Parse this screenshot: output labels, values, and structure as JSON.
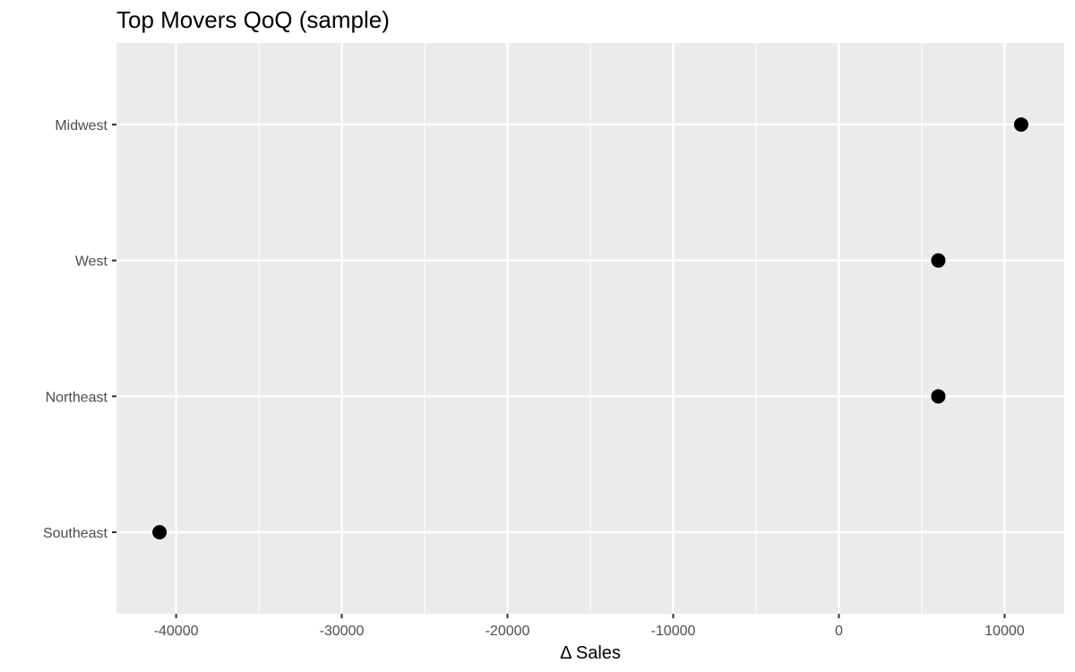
{
  "chart_data": {
    "type": "scatter",
    "title": "Top Movers QoQ (sample)",
    "xlabel": "Δ Sales",
    "ylabel": "",
    "categories": [
      "Southeast",
      "Northeast",
      "West",
      "Midwest"
    ],
    "values": [
      -41000,
      6000,
      6000,
      11000
    ],
    "xlim": [
      -43600,
      13600
    ],
    "x_ticks": [
      -40000,
      -30000,
      -20000,
      -10000,
      0,
      10000
    ],
    "x_tick_labels": [
      "-40000",
      "-30000",
      "-20000",
      "-10000",
      "0",
      "10000"
    ],
    "grid": true,
    "legend": "none",
    "colors": {
      "panel": "#ebebeb",
      "grid": "#ffffff",
      "point": "#000000",
      "tick_text": "#4d4d4d",
      "tick_mark": "#333333"
    }
  }
}
